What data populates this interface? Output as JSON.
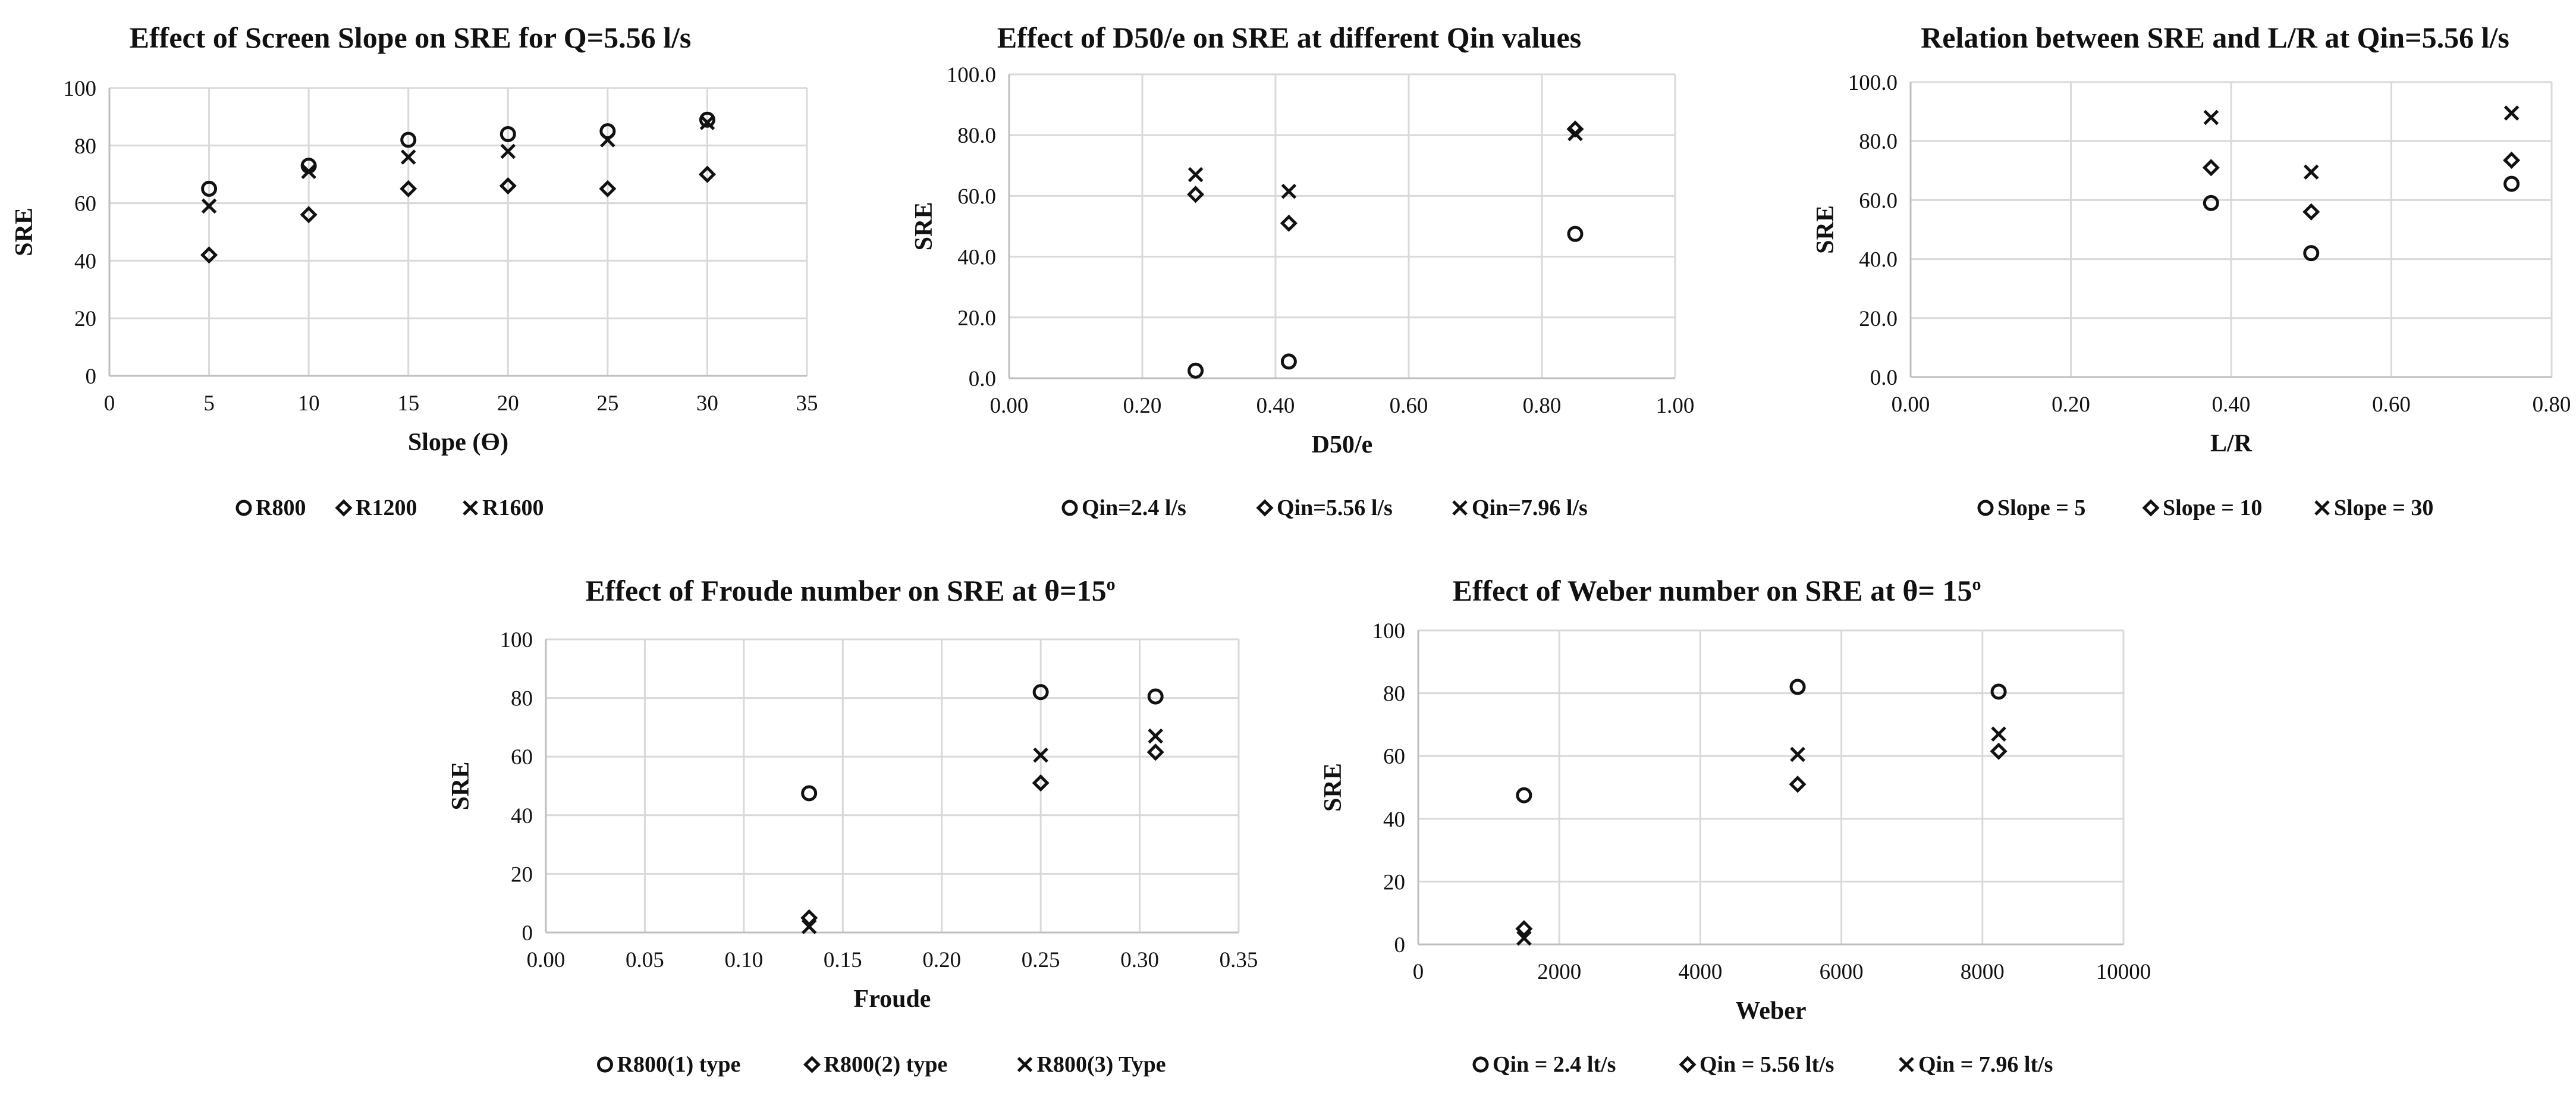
{
  "chart_data": [
    {
      "type": "scatter",
      "title": "Effect of Screen Slope on SRE for Q=5.56 l/s",
      "xlabel": "Slope (Ɵ)",
      "ylabel": "SRE",
      "xlim": [
        0,
        35
      ],
      "ylim": [
        0,
        100
      ],
      "xticks": [
        "0",
        "5",
        "10",
        "15",
        "20",
        "25",
        "30",
        "35"
      ],
      "yticks": [
        "0",
        "20",
        "40",
        "60",
        "80",
        "100"
      ],
      "legend_position": "bottom",
      "series": [
        {
          "name": "R800",
          "marker": "circle",
          "x": [
            5,
            10,
            15,
            20,
            25,
            30
          ],
          "y": [
            65,
            73,
            82,
            84,
            85,
            89
          ]
        },
        {
          "name": "R1200",
          "marker": "diamond",
          "x": [
            5,
            10,
            15,
            20,
            25,
            30
          ],
          "y": [
            42,
            56,
            65,
            66,
            65,
            70
          ]
        },
        {
          "name": "R1600",
          "marker": "x",
          "x": [
            5,
            10,
            15,
            20,
            25,
            30
          ],
          "y": [
            59,
            71,
            76,
            78,
            82,
            88
          ]
        }
      ]
    },
    {
      "type": "scatter",
      "title": "Effect of D50/e on SRE at different Qin values",
      "xlabel": "D50/e",
      "ylabel": "SRE",
      "xlim": [
        0,
        1
      ],
      "ylim": [
        0,
        100
      ],
      "xticks": [
        "0.00",
        "0.20",
        "0.40",
        "0.60",
        "0.80",
        "1.00"
      ],
      "yticks": [
        "0.0",
        "20.0",
        "40.0",
        "60.0",
        "80.0",
        "100.0"
      ],
      "legend_position": "bottom",
      "series": [
        {
          "name": "Qin=2.4 l/s",
          "marker": "circle",
          "x": [
            0.28,
            0.42,
            0.85
          ],
          "y": [
            2.5,
            5.5,
            47.5
          ]
        },
        {
          "name": "Qin=5.56 l/s",
          "marker": "diamond",
          "x": [
            0.28,
            0.42,
            0.85
          ],
          "y": [
            60.5,
            51,
            82
          ]
        },
        {
          "name": "Qin=7.96 l/s",
          "marker": "x",
          "x": [
            0.28,
            0.42,
            0.85
          ],
          "y": [
            67,
            61.5,
            80.5
          ]
        }
      ]
    },
    {
      "type": "scatter",
      "title": "Relation between SRE and L/R at Qin=5.56 l/s",
      "xlabel": "L/R",
      "ylabel": "SRE",
      "xlim": [
        0,
        0.8
      ],
      "ylim": [
        0,
        100
      ],
      "xticks": [
        "0.00",
        "0.20",
        "0.40",
        "0.60",
        "0.80"
      ],
      "yticks": [
        "0.0",
        "20.0",
        "40.0",
        "60.0",
        "80.0",
        "100.0"
      ],
      "legend_position": "bottom",
      "series": [
        {
          "name": "Slope = 5",
          "marker": "circle",
          "x": [
            0.375,
            0.5,
            0.75
          ],
          "y": [
            59,
            42,
            65.5
          ]
        },
        {
          "name": "Slope = 10",
          "marker": "diamond",
          "x": [
            0.375,
            0.5,
            0.75
          ],
          "y": [
            71,
            56,
            73.5
          ]
        },
        {
          "name": "Slope = 30",
          "marker": "x",
          "x": [
            0.375,
            0.5,
            0.75
          ],
          "y": [
            88,
            69.5,
            89.5
          ]
        }
      ]
    },
    {
      "type": "scatter",
      "title": "Effect of Froude number on SRE at θ=15",
      "title_superscript": "o",
      "xlabel": "Froude",
      "ylabel": "SRE",
      "xlim": [
        0,
        0.35
      ],
      "ylim": [
        0,
        100
      ],
      "xticks": [
        "0.00",
        "0.05",
        "0.10",
        "0.15",
        "0.20",
        "0.25",
        "0.30",
        "0.35"
      ],
      "yticks": [
        "0",
        "20",
        "40",
        "60",
        "80",
        "100"
      ],
      "legend_position": "bottom",
      "series": [
        {
          "name": "R800(1) type",
          "marker": "circle",
          "x": [
            0.133,
            0.25,
            0.308
          ],
          "y": [
            47.5,
            82,
            80.5
          ]
        },
        {
          "name": "R800(2) type",
          "marker": "diamond",
          "x": [
            0.133,
            0.25,
            0.308
          ],
          "y": [
            5,
            51,
            61.5
          ]
        },
        {
          "name": "R800(3) Type",
          "marker": "x",
          "x": [
            0.133,
            0.25,
            0.308
          ],
          "y": [
            2,
            60.5,
            67
          ]
        }
      ]
    },
    {
      "type": "scatter",
      "title": "Effect of Weber number on SRE at θ= 15",
      "title_superscript": "o",
      "xlabel": "Weber",
      "ylabel": "SRE",
      "xlim": [
        0,
        10000
      ],
      "ylim": [
        0,
        100
      ],
      "xticks": [
        "0",
        "2000",
        "4000",
        "6000",
        "8000",
        "10000"
      ],
      "yticks": [
        "0",
        "20",
        "40",
        "60",
        "80",
        "100"
      ],
      "legend_position": "bottom",
      "series": [
        {
          "name": "Qin = 2.4 lt/s",
          "marker": "circle",
          "x": [
            1500,
            5380,
            8230
          ],
          "y": [
            47.5,
            82,
            80.5
          ]
        },
        {
          "name": "Qin = 5.56 lt/s",
          "marker": "diamond",
          "x": [
            1500,
            5380,
            8230
          ],
          "y": [
            5,
            51,
            61.5
          ]
        },
        {
          "name": "Qin = 7.96 lt/s",
          "marker": "x",
          "x": [
            1500,
            5380,
            8230
          ],
          "y": [
            2,
            60.5,
            67
          ]
        }
      ]
    }
  ]
}
